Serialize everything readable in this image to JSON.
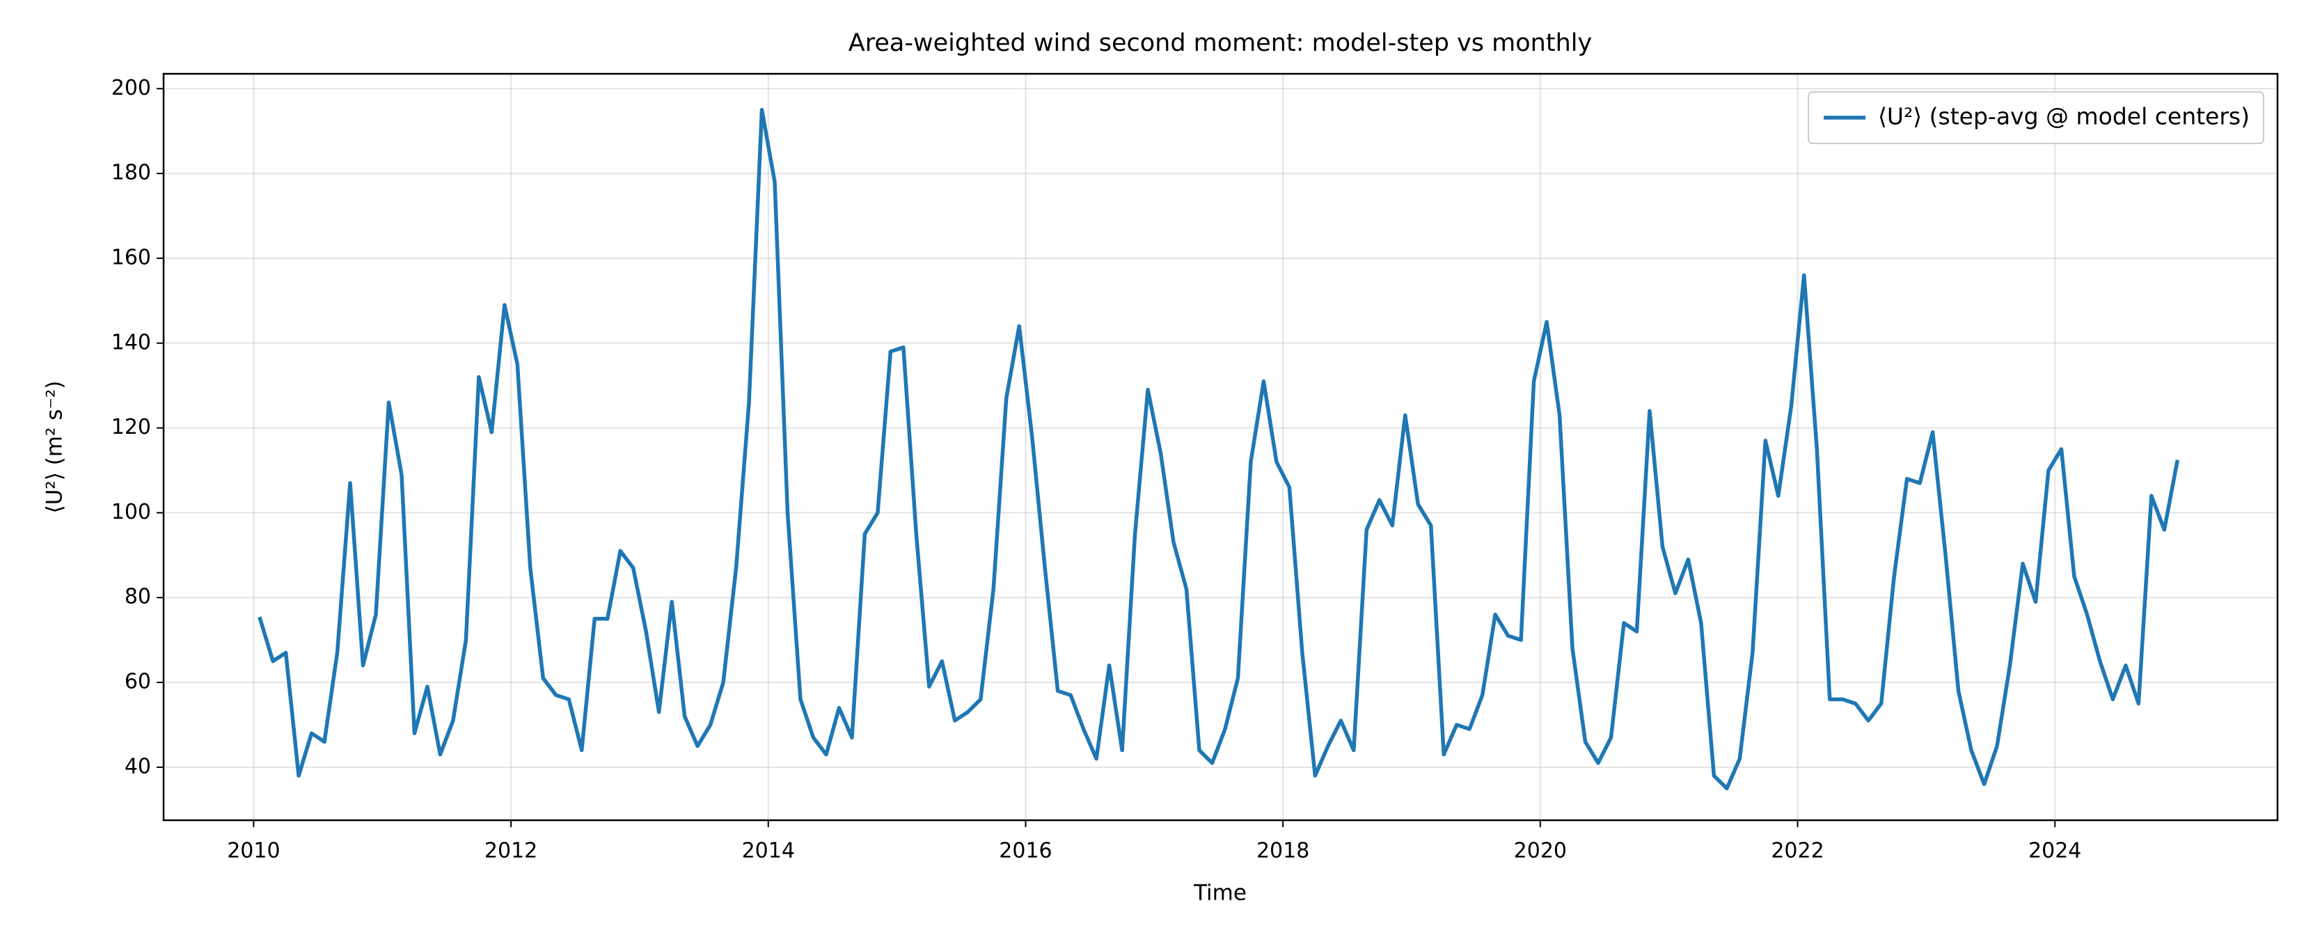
{
  "chart_data": {
    "type": "line",
    "title": "Area-weighted wind second moment: model-step vs monthly",
    "x_label": "Time",
    "y_label": "⟨U²⟩  (m² s⁻²)",
    "x": [
      2010.05,
      2010.15,
      2010.25,
      2010.35,
      2010.45,
      2010.55,
      2010.65,
      2010.75,
      2010.85,
      2010.95,
      2011.05,
      2011.15,
      2011.25,
      2011.35,
      2011.45,
      2011.55,
      2011.65,
      2011.75,
      2011.85,
      2011.95,
      2012.05,
      2012.15,
      2012.25,
      2012.35,
      2012.45,
      2012.55,
      2012.65,
      2012.75,
      2012.85,
      2012.95,
      2013.05,
      2013.15,
      2013.25,
      2013.35,
      2013.45,
      2013.55,
      2013.65,
      2013.75,
      2013.85,
      2013.95,
      2014.05,
      2014.15,
      2014.25,
      2014.35,
      2014.45,
      2014.55,
      2014.65,
      2014.75,
      2014.85,
      2014.95,
      2015.05,
      2015.15,
      2015.25,
      2015.35,
      2015.45,
      2015.55,
      2015.65,
      2015.75,
      2015.85,
      2015.95,
      2016.05,
      2016.15,
      2016.25,
      2016.35,
      2016.45,
      2016.55,
      2016.65,
      2016.75,
      2016.85,
      2016.95,
      2017.05,
      2017.15,
      2017.25,
      2017.35,
      2017.45,
      2017.55,
      2017.65,
      2017.75,
      2017.85,
      2017.95,
      2018.05,
      2018.15,
      2018.25,
      2018.35,
      2018.45,
      2018.55,
      2018.65,
      2018.75,
      2018.85,
      2018.95,
      2019.05,
      2019.15,
      2019.25,
      2019.35,
      2019.45,
      2019.55,
      2019.65,
      2019.75,
      2019.85,
      2019.95,
      2020.05,
      2020.15,
      2020.25,
      2020.35,
      2020.45,
      2020.55,
      2020.65,
      2020.75,
      2020.85,
      2020.95,
      2021.05,
      2021.15,
      2021.25,
      2021.35,
      2021.45,
      2021.55,
      2021.65,
      2021.75,
      2021.85,
      2021.95,
      2022.05,
      2022.15,
      2022.25,
      2022.35,
      2022.45,
      2022.55,
      2022.65,
      2022.75,
      2022.85,
      2022.95,
      2023.05,
      2023.15,
      2023.25,
      2023.35,
      2023.45,
      2023.55,
      2023.65,
      2023.75,
      2023.85,
      2023.95,
      2024.05,
      2024.15,
      2024.25,
      2024.35,
      2024.45,
      2024.55,
      2024.65,
      2024.75,
      2024.85,
      2024.95
    ],
    "series": [
      {
        "name": "⟨U²⟩ (step-avg @ model centers)",
        "color": "#1f77b4",
        "values": [
          75,
          65,
          67,
          38,
          48,
          46,
          67,
          107,
          64,
          76,
          126,
          109,
          48,
          59,
          43,
          51,
          70,
          132,
          119,
          149,
          135,
          87,
          61,
          57,
          56,
          44,
          75,
          75,
          91,
          87,
          72,
          53,
          79,
          52,
          45,
          50,
          60,
          87,
          126,
          195,
          178,
          100,
          56,
          47,
          43,
          54,
          47,
          95,
          100,
          138,
          139,
          95,
          59,
          65,
          51,
          53,
          56,
          82,
          127,
          144,
          118,
          87,
          58,
          57,
          49,
          42,
          64,
          44,
          95,
          129,
          114,
          93,
          82,
          44,
          41,
          49,
          61,
          112,
          131,
          112,
          106,
          67,
          38,
          45,
          51,
          44,
          96,
          103,
          97,
          123,
          102,
          97,
          43,
          50,
          49,
          57,
          76,
          71,
          70,
          131,
          145,
          123,
          68,
          46,
          41,
          47,
          74,
          72,
          124,
          92,
          81,
          89,
          74,
          38,
          35,
          42,
          67,
          117,
          104,
          125,
          156,
          115,
          56,
          56,
          55,
          51,
          55,
          85,
          108,
          107,
          119,
          90,
          58,
          44,
          36,
          45,
          64,
          88,
          79,
          110,
          115,
          85,
          76,
          65,
          56,
          64,
          55,
          104,
          96,
          112
        ]
      }
    ],
    "xlim": [
      2009.3,
      2025.73
    ],
    "xticks": [
      2010,
      2012,
      2014,
      2016,
      2018,
      2020,
      2022,
      2024
    ],
    "ylim": [
      27.5,
      203.5
    ],
    "yticks": [
      40,
      60,
      80,
      100,
      120,
      140,
      160,
      180,
      200
    ],
    "grid": true,
    "legend": "upper right"
  }
}
